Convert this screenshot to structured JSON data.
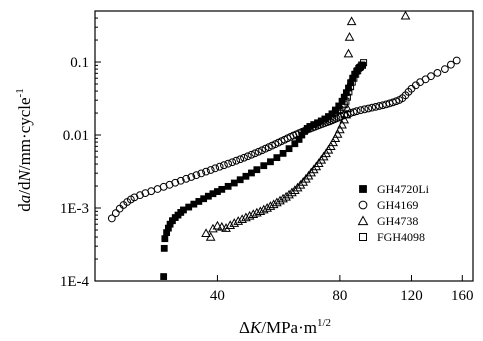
{
  "chart_data": {
    "type": "scatter",
    "xscale": "log",
    "yscale": "log",
    "xlim": [
      20,
      170
    ],
    "ylim": [
      0.0001,
      0.5
    ],
    "xlabel": {
      "prefix": "Δ",
      "var": "K",
      "unit": "/MPa·m",
      "sup": "1/2"
    },
    "ylabel": {
      "d1": "d",
      "v1": "a",
      "mid": "/d",
      "v2": "N",
      "unit": "/mm·cycle",
      "sup": "-1"
    },
    "x_ticks": [
      {
        "value": 40,
        "label": "40"
      },
      {
        "value": 80,
        "label": "80"
      },
      {
        "value": 120,
        "label": "120"
      },
      {
        "value": 160,
        "label": "160"
      }
    ],
    "y_ticks": [
      {
        "value": 0.0001,
        "label": "1E-4"
      },
      {
        "value": 0.001,
        "label": "1E-3"
      },
      {
        "value": 0.01,
        "label": "0.01"
      },
      {
        "value": 0.1,
        "label": "0.1"
      }
    ],
    "grid": false,
    "legend_position": "lower-right",
    "series": [
      {
        "name": "GH4720Li",
        "marker": "filled-square",
        "points": [
          [
            29.5,
            0.000115
          ],
          [
            29.6,
            0.00028
          ],
          [
            29.7,
            0.00038
          ],
          [
            30.0,
            0.00046
          ],
          [
            30.3,
            0.00053
          ],
          [
            30.6,
            0.0006
          ],
          [
            31.0,
            0.00067
          ],
          [
            31.5,
            0.00074
          ],
          [
            32.0,
            0.0008
          ],
          [
            32.5,
            0.00087
          ],
          [
            33.0,
            0.00094
          ],
          [
            34.0,
            0.00103
          ],
          [
            35.0,
            0.00113
          ],
          [
            36.0,
            0.00123
          ],
          [
            37.0,
            0.00134
          ],
          [
            38.0,
            0.00145
          ],
          [
            39.0,
            0.00157
          ],
          [
            40.0,
            0.00168
          ],
          [
            41.0,
            0.0018
          ],
          [
            42.5,
            0.00198
          ],
          [
            44.0,
            0.0022
          ],
          [
            45.5,
            0.00244
          ],
          [
            47.0,
            0.00272
          ],
          [
            48.5,
            0.00302
          ],
          [
            50.0,
            0.00335
          ],
          [
            52.0,
            0.0038
          ],
          [
            54.0,
            0.0043
          ],
          [
            56.0,
            0.0049
          ],
          [
            58.0,
            0.0056
          ],
          [
            60.0,
            0.0065
          ],
          [
            62.0,
            0.0076
          ],
          [
            63.5,
            0.0087
          ],
          [
            64.5,
            0.01
          ],
          [
            65.5,
            0.0112
          ],
          [
            66.5,
            0.0123
          ],
          [
            67.5,
            0.0131
          ],
          [
            69.0,
            0.0139
          ],
          [
            70.5,
            0.0147
          ],
          [
            72.0,
            0.0156
          ],
          [
            73.5,
            0.0166
          ],
          [
            75.0,
            0.0179
          ],
          [
            76.5,
            0.0195
          ],
          [
            78.0,
            0.022
          ],
          [
            79.5,
            0.025
          ],
          [
            81.0,
            0.029
          ],
          [
            82.0,
            0.033
          ],
          [
            83.0,
            0.038
          ],
          [
            84.0,
            0.044
          ],
          [
            85.0,
            0.052
          ],
          [
            86.0,
            0.06
          ],
          [
            87.0,
            0.068
          ],
          [
            88.0,
            0.075
          ],
          [
            89.0,
            0.082
          ],
          [
            90.0,
            0.086
          ],
          [
            91.0,
            0.09
          ]
        ]
      },
      {
        "name": "GH4169",
        "marker": "open-circle",
        "points": [
          [
            22.0,
            0.00072
          ],
          [
            22.5,
            0.00085
          ],
          [
            23.0,
            0.00098
          ],
          [
            23.5,
            0.0011
          ],
          [
            24.0,
            0.00121
          ],
          [
            24.5,
            0.00131
          ],
          [
            25.0,
            0.0014
          ],
          [
            25.8,
            0.0015
          ],
          [
            26.6,
            0.0016
          ],
          [
            27.5,
            0.0017
          ],
          [
            28.5,
            0.00182
          ],
          [
            29.5,
            0.00195
          ],
          [
            30.5,
            0.00208
          ],
          [
            31.5,
            0.00222
          ],
          [
            32.5,
            0.00236
          ],
          [
            33.5,
            0.00251
          ],
          [
            34.5,
            0.00266
          ],
          [
            35.5,
            0.00282
          ],
          [
            36.5,
            0.00298
          ],
          [
            37.5,
            0.00315
          ],
          [
            38.5,
            0.00332
          ],
          [
            39.5,
            0.0035
          ],
          [
            40.5,
            0.00368
          ],
          [
            41.5,
            0.00386
          ],
          [
            42.5,
            0.00405
          ],
          [
            43.5,
            0.00424
          ],
          [
            44.5,
            0.00445
          ],
          [
            45.5,
            0.00466
          ],
          [
            46.5,
            0.00488
          ],
          [
            47.5,
            0.00512
          ],
          [
            48.5,
            0.00537
          ],
          [
            49.5,
            0.00563
          ],
          [
            50.5,
            0.0059
          ],
          [
            51.5,
            0.00619
          ],
          [
            52.5,
            0.0065
          ],
          [
            53.5,
            0.00681
          ],
          [
            54.5,
            0.00715
          ],
          [
            55.5,
            0.00749
          ],
          [
            56.5,
            0.00786
          ],
          [
            57.5,
            0.00824
          ],
          [
            58.5,
            0.00862
          ],
          [
            59.5,
            0.00902
          ],
          [
            60.5,
            0.00942
          ],
          [
            61.5,
            0.00983
          ],
          [
            62.5,
            0.0102
          ],
          [
            63.5,
            0.0106
          ],
          [
            64.5,
            0.011
          ],
          [
            65.5,
            0.0114
          ],
          [
            66.5,
            0.0118
          ],
          [
            67.5,
            0.0122
          ],
          [
            68.5,
            0.0126
          ],
          [
            69.5,
            0.013
          ],
          [
            70.5,
            0.0134
          ],
          [
            71.5,
            0.0138
          ],
          [
            72.5,
            0.0142
          ],
          [
            73.5,
            0.0146
          ],
          [
            74.5,
            0.015
          ],
          [
            75.5,
            0.0154
          ],
          [
            76.5,
            0.0159
          ],
          [
            77.5,
            0.0164
          ],
          [
            78.5,
            0.0169
          ],
          [
            79.5,
            0.0174
          ],
          [
            80.5,
            0.0179
          ],
          [
            82.0,
            0.0186
          ],
          [
            83.5,
            0.0193
          ],
          [
            85.0,
            0.02
          ],
          [
            86.5,
            0.0206
          ],
          [
            88.0,
            0.0212
          ],
          [
            90.0,
            0.0219
          ],
          [
            92.0,
            0.0225
          ],
          [
            94.0,
            0.0231
          ],
          [
            96.0,
            0.0237
          ],
          [
            98.0,
            0.0243
          ],
          [
            100.0,
            0.025
          ],
          [
            102.0,
            0.0256
          ],
          [
            104.0,
            0.0263
          ],
          [
            106.0,
            0.0271
          ],
          [
            108.0,
            0.028
          ],
          [
            110.0,
            0.029
          ],
          [
            112.0,
            0.0302
          ],
          [
            114.0,
            0.032
          ],
          [
            116.0,
            0.035
          ],
          [
            118.0,
            0.039
          ],
          [
            120.0,
            0.043
          ],
          [
            123.0,
            0.048
          ],
          [
            126.0,
            0.053
          ],
          [
            130.0,
            0.058
          ],
          [
            134.0,
            0.064
          ],
          [
            139.0,
            0.071
          ],
          [
            145.0,
            0.08
          ],
          [
            150.0,
            0.092
          ],
          [
            155.0,
            0.105
          ]
        ]
      },
      {
        "name": "GH4738",
        "marker": "open-triangle",
        "points": [
          [
            37.5,
            0.00045
          ],
          [
            38.5,
            0.0004
          ],
          [
            39.0,
            0.00052
          ],
          [
            40.0,
            0.00057
          ],
          [
            41.0,
            0.00055
          ],
          [
            42.0,
            0.00053
          ],
          [
            43.0,
            0.00058
          ],
          [
            44.0,
            0.00062
          ],
          [
            45.0,
            0.00066
          ],
          [
            46.0,
            0.0007
          ],
          [
            47.0,
            0.00074
          ],
          [
            48.0,
            0.00078
          ],
          [
            49.0,
            0.00082
          ],
          [
            50.0,
            0.00086
          ],
          [
            51.0,
            0.0009
          ],
          [
            52.0,
            0.00095
          ],
          [
            53.0,
            0.001
          ],
          [
            54.0,
            0.00106
          ],
          [
            55.0,
            0.00112
          ],
          [
            56.0,
            0.00119
          ],
          [
            57.0,
            0.00126
          ],
          [
            58.0,
            0.00134
          ],
          [
            59.0,
            0.00142
          ],
          [
            60.0,
            0.00152
          ],
          [
            61.0,
            0.00163
          ],
          [
            62.0,
            0.00175
          ],
          [
            63.0,
            0.0019
          ],
          [
            64.0,
            0.00207
          ],
          [
            65.0,
            0.00227
          ],
          [
            66.0,
            0.0025
          ],
          [
            67.0,
            0.00276
          ],
          [
            68.0,
            0.00305
          ],
          [
            69.0,
            0.00336
          ],
          [
            70.0,
            0.0037
          ],
          [
            71.0,
            0.0041
          ],
          [
            72.0,
            0.00455
          ],
          [
            73.0,
            0.00505
          ],
          [
            74.0,
            0.0056
          ],
          [
            75.0,
            0.00625
          ],
          [
            76.0,
            0.007
          ],
          [
            77.0,
            0.0079
          ],
          [
            78.0,
            0.009
          ],
          [
            79.0,
            0.0103
          ],
          [
            80.0,
            0.0119
          ],
          [
            81.0,
            0.0138
          ],
          [
            82.0,
            0.0162
          ],
          [
            83.0,
            0.019
          ],
          [
            83.5,
            0.023
          ],
          [
            84.0,
            0.13
          ],
          [
            84.5,
            0.22
          ],
          [
            85.5,
            0.36
          ],
          [
            116.0,
            0.43
          ]
        ]
      },
      {
        "name": "FGH4098",
        "marker": "open-square",
        "points": [
          [
            78.0,
            0.0205
          ],
          [
            79.0,
            0.0215
          ],
          [
            80.0,
            0.0225
          ],
          [
            81.0,
            0.024
          ],
          [
            82.0,
            0.026
          ],
          [
            82.8,
            0.029
          ],
          [
            83.5,
            0.033
          ],
          [
            84.2,
            0.039
          ],
          [
            85.0,
            0.046
          ],
          [
            85.8,
            0.053
          ],
          [
            86.6,
            0.06
          ],
          [
            87.5,
            0.068
          ],
          [
            88.5,
            0.076
          ],
          [
            89.5,
            0.084
          ],
          [
            90.5,
            0.091
          ],
          [
            91.5,
            0.098
          ]
        ]
      }
    ]
  }
}
